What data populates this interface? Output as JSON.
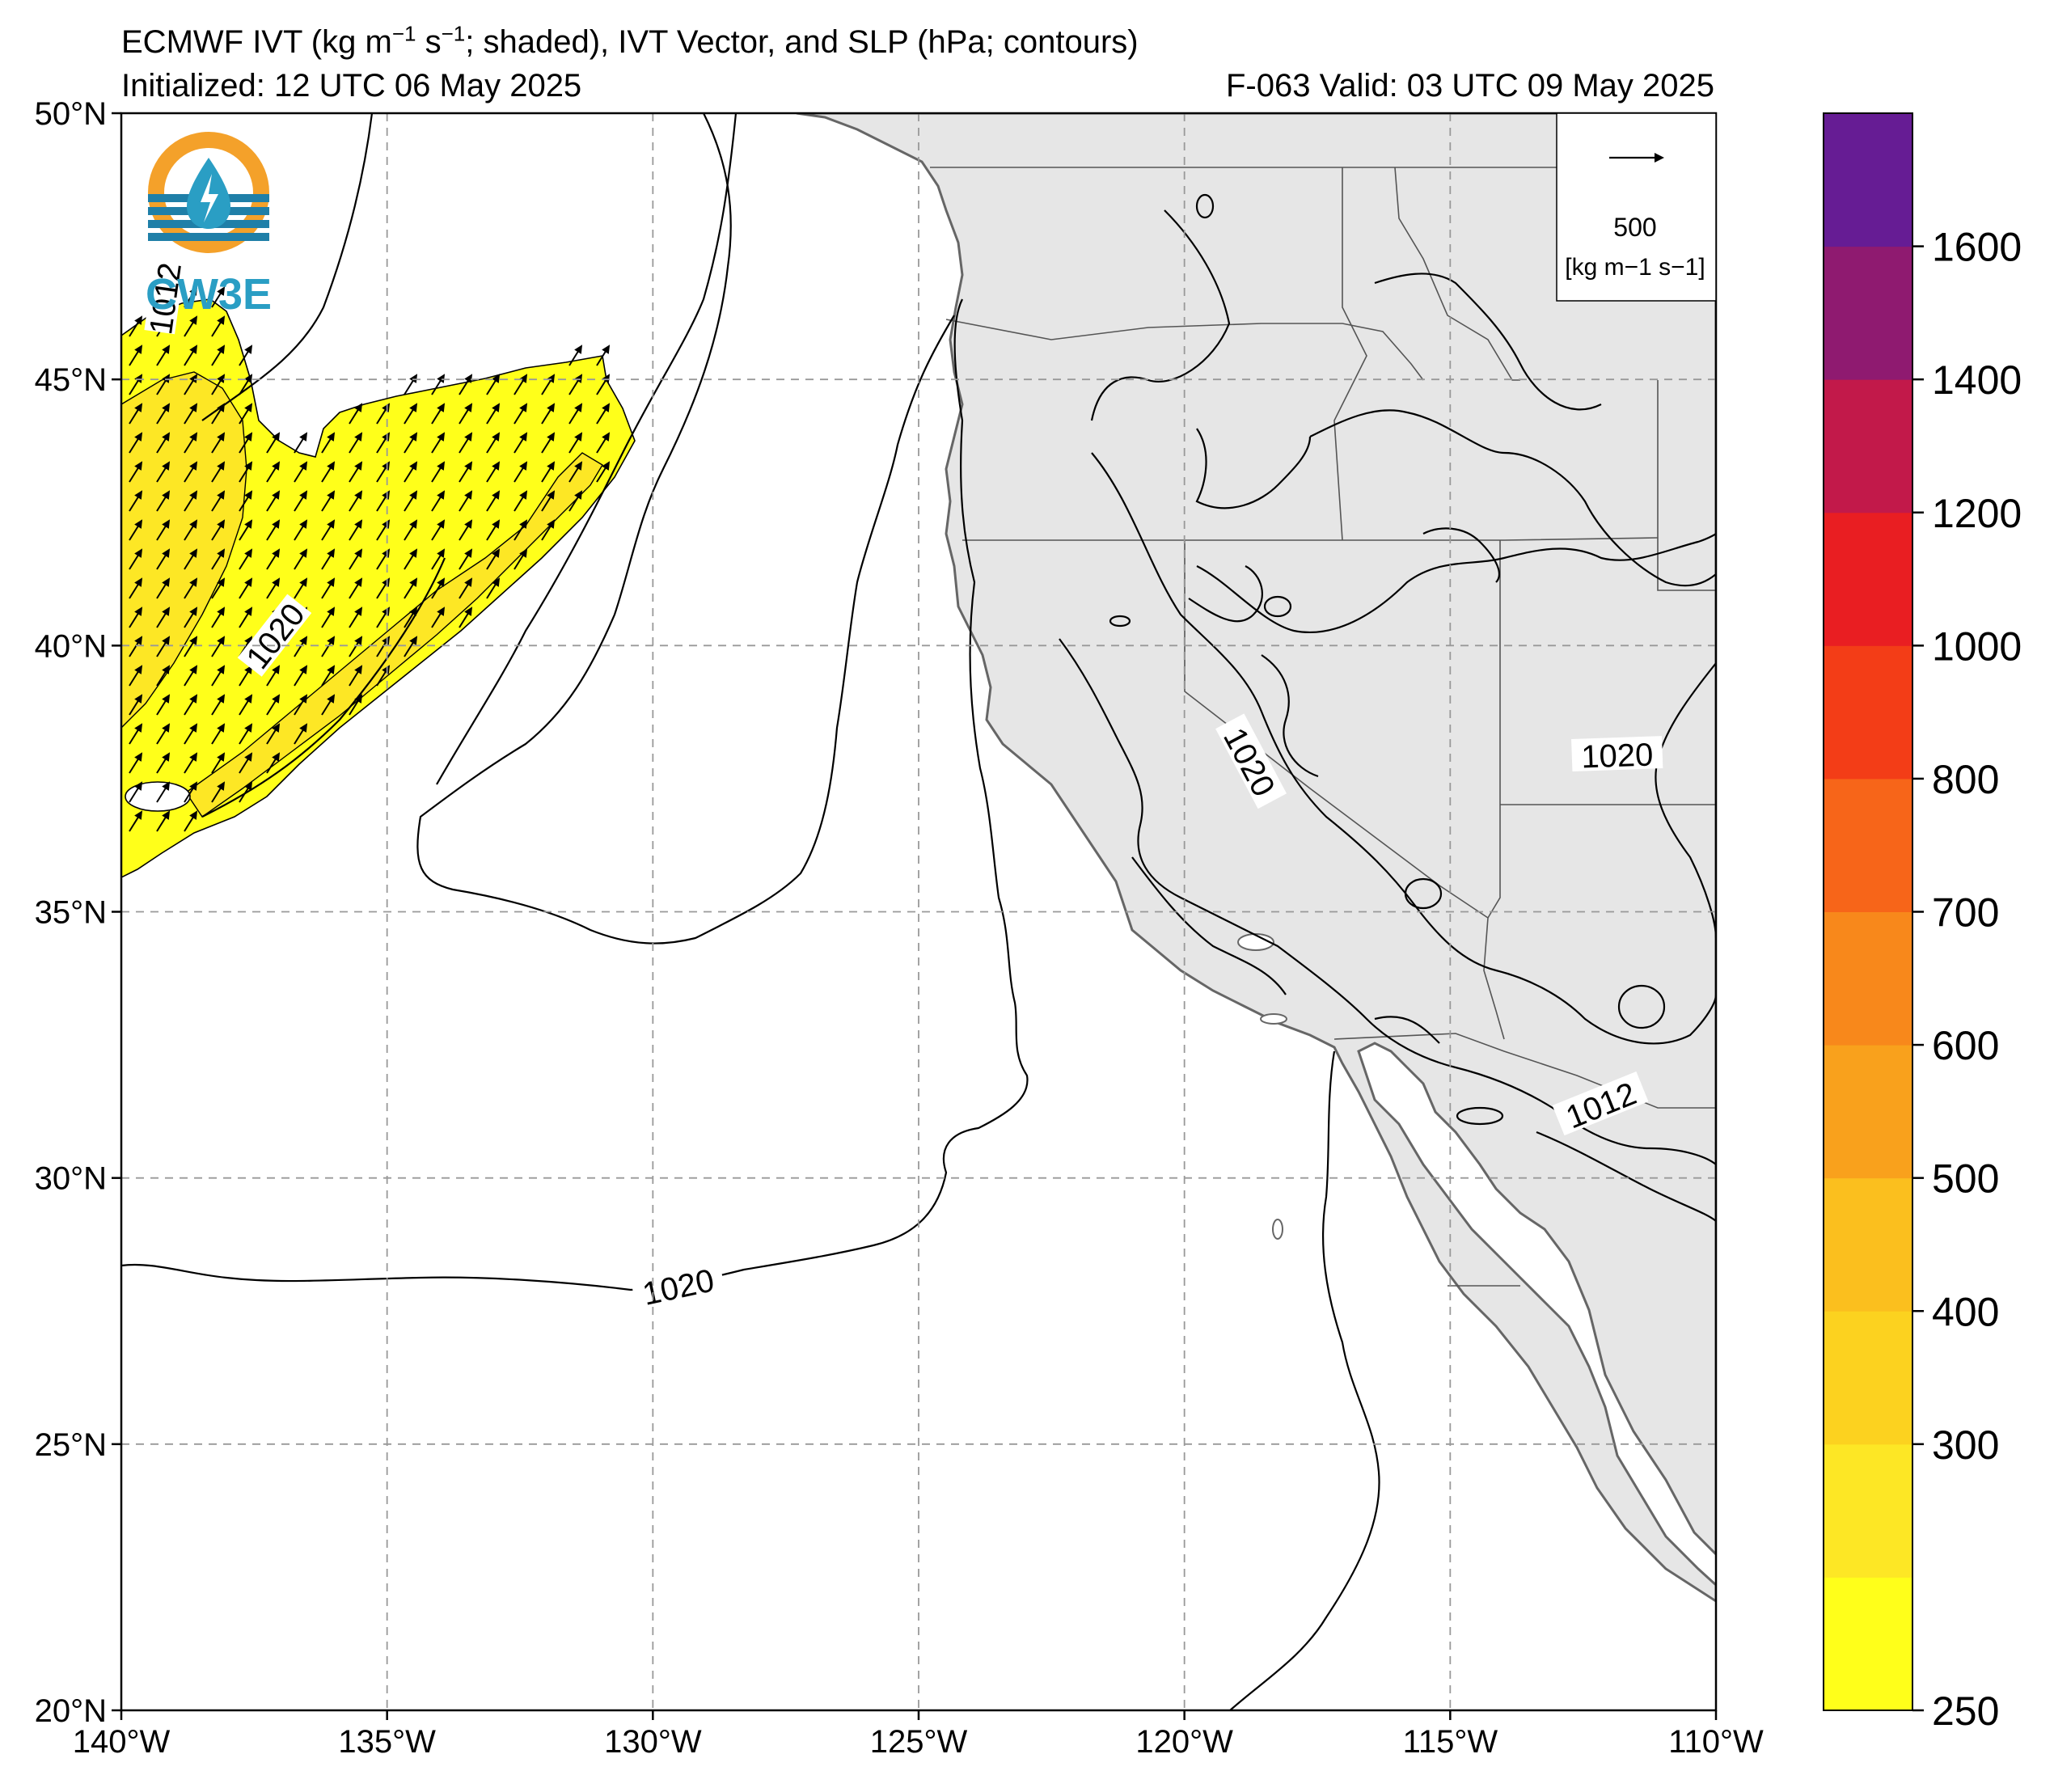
{
  "title": {
    "line1_prefix": "ECMWF IVT (kg m",
    "line1_exp1": "−1",
    "line1_mid": " s",
    "line1_exp2": "−1",
    "line1_suffix": "; shaded), IVT Vector, and SLP (hPa; contours)",
    "line2": "Initialized: 12 UTC 06 May 2025",
    "forecast": "F-063  Valid: 03 UTC 09 May 2025"
  },
  "logo": {
    "text": "CW3E"
  },
  "axes": {
    "lat_labels": [
      "50°N",
      "45°N",
      "40°N",
      "35°N",
      "30°N",
      "25°N",
      "20°N"
    ],
    "lon_labels": [
      "140°W",
      "135°W",
      "130°W",
      "125°W",
      "120°W",
      "115°W",
      "110°W"
    ],
    "lat_values": [
      50,
      45,
      40,
      35,
      30,
      25,
      20
    ],
    "lon_values": [
      -140,
      -135,
      -130,
      -125,
      -120,
      -115,
      -110
    ]
  },
  "reference_vector": {
    "value": "500",
    "units": "[kg m−1 s−1]"
  },
  "colorbar": {
    "tick_labels": [
      "1600",
      "1400",
      "1200",
      "1000",
      "800",
      "700",
      "600",
      "500",
      "400",
      "300",
      "250"
    ],
    "colors": [
      "#ffff1a",
      "#fde725",
      "#fcd21f",
      "#fbbf1e",
      "#f9a11c",
      "#f8881b",
      "#f76519",
      "#f33d17",
      "#e91e22",
      "#c2194a",
      "#8f1a70",
      "#661c94"
    ]
  },
  "contour_labels": [
    "1020",
    "1020",
    "1020",
    "1020",
    "1012",
    "1012"
  ],
  "colors": {
    "land": "#e6e6e6",
    "coast": "#666666",
    "ivt_fill": "#ffff1a",
    "ivt_core": "#fde725",
    "grid": "#999999"
  }
}
